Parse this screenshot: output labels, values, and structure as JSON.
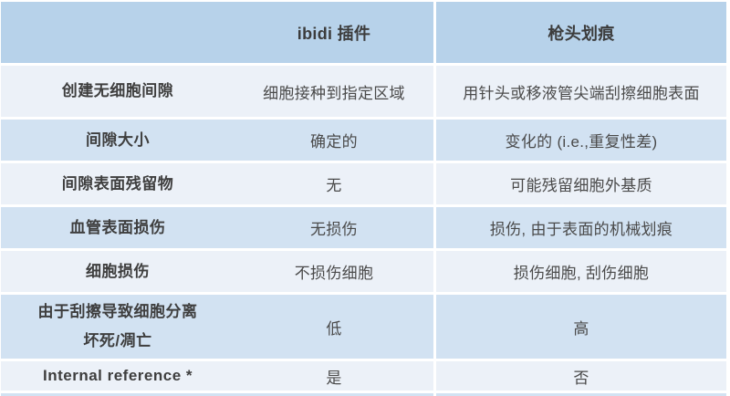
{
  "colors": {
    "header_bg": "#b7d2ea",
    "row_light": "#ecf1f8",
    "row_medium": "#d2e2f2",
    "separator": "#ffffff",
    "text_heading": "#3c3c3c",
    "text_body": "#4a4a4a"
  },
  "table": {
    "header": {
      "row_label": "",
      "method_ibidi": "ibidi 插件",
      "method_scratch": "枪头划痕"
    },
    "rows": [
      {
        "label": "创建无细胞间隙",
        "ibidi": "细胞接种到指定区域",
        "scratch": "用针头或移液管尖端刮擦细胞表面"
      },
      {
        "label": "间隙大小",
        "ibidi": "确定的",
        "scratch": "变化的 (i.e.,重复性差)"
      },
      {
        "label": "间隙表面残留物",
        "ibidi": "无",
        "scratch": "可能残留细胞外基质"
      },
      {
        "label": "血管表面损伤",
        "ibidi": "无损伤",
        "scratch": "损伤, 由于表面的机械划痕"
      },
      {
        "label": "细胞损伤",
        "ibidi": "不损伤细胞",
        "scratch": "损伤细胞, 刮伤细胞"
      },
      {
        "label": "由于刮擦导致细胞分离\n坏死/凋亡",
        "ibidi": "低",
        "scratch": "高"
      },
      {
        "label": "Internal reference *",
        "ibidi": "是",
        "scratch": "否"
      }
    ]
  }
}
